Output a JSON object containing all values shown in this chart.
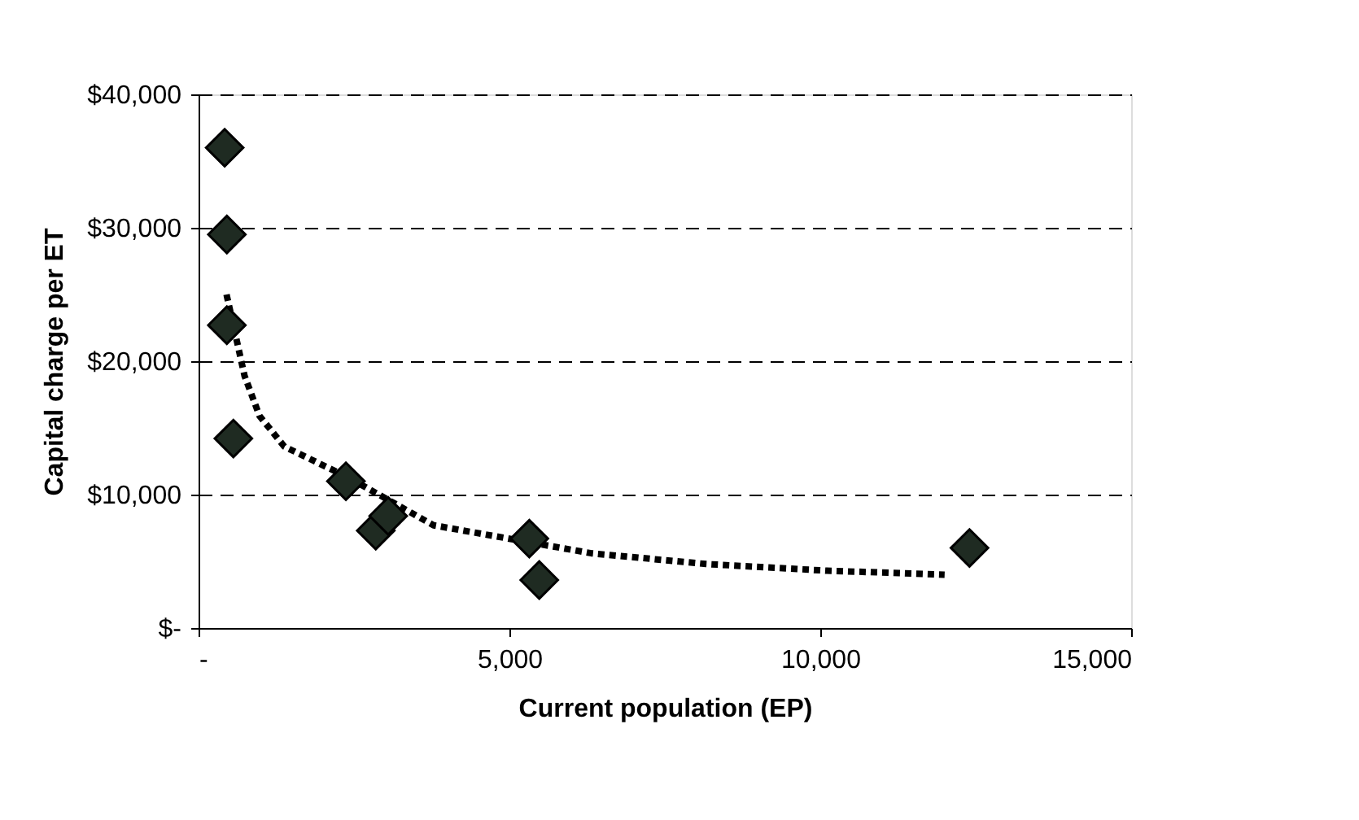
{
  "chart_data": {
    "type": "scatter",
    "xlabel": "Current population (EP)",
    "ylabel": "Capital charge per ET",
    "xlim": [
      0,
      15000
    ],
    "xticks": [
      {
        "value": 0,
        "label": "-"
      },
      {
        "value": 5000,
        "label": "5,000"
      },
      {
        "value": 10000,
        "label": "10,000"
      },
      {
        "value": 15000,
        "label": "15,000"
      }
    ],
    "ylim": [
      0,
      40000
    ],
    "yticks": [
      {
        "value": 0,
        "label": "$-"
      },
      {
        "value": 10000,
        "label": "$10,000"
      },
      {
        "value": 20000,
        "label": "$20,000"
      },
      {
        "value": 30000,
        "label": "$30,000"
      },
      {
        "value": 40000,
        "label": "$40,000"
      }
    ],
    "grid": "y",
    "series": [
      {
        "color": "#1f2b22",
        "marker": "diamond",
        "x": [
          420,
          455,
          455,
          560,
          2370,
          2850,
          3050,
          5320,
          5480,
          12400
        ],
        "values": [
          36000,
          29500,
          22700,
          14200,
          11000,
          7300,
          8400,
          6700,
          3600,
          6000
        ]
      },
      {
        "type": "line",
        "color": "#000000",
        "marker": "none",
        "line_style": "dotted",
        "x": [
          450,
          740,
          980,
          1380,
          2400,
          3780,
          6320,
          8160,
          10090,
          12000
        ],
        "values": [
          25000,
          18900,
          15900,
          13600,
          11300,
          7700,
          5600,
          4800,
          4300,
          4000
        ]
      }
    ]
  }
}
